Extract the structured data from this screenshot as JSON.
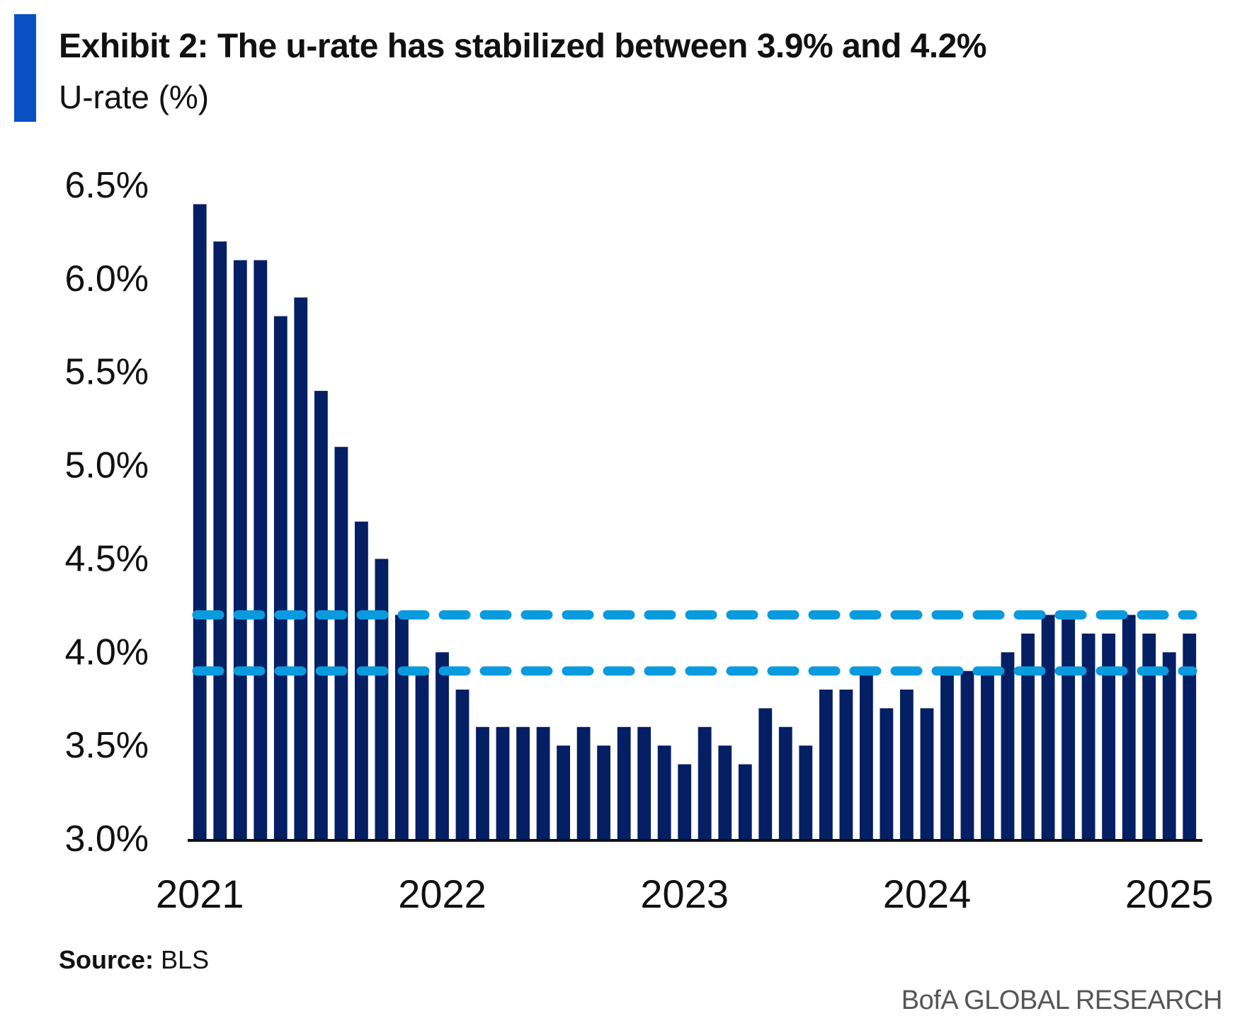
{
  "header": {
    "title": "Exhibit 2: The u-rate has stabilized between 3.9% and 4.2%",
    "subtitle": "U-rate (%)"
  },
  "footer": {
    "source_label": "Source:",
    "source_value": "BLS",
    "brand": "BofA GLOBAL RESEARCH"
  },
  "colors": {
    "bar": "#041f63",
    "reference_line": "#0a9ade",
    "accent": "#0b4fc4"
  },
  "chart_data": {
    "type": "bar",
    "title": "Exhibit 2: The u-rate has stabilized between 3.9% and 4.2%",
    "ylabel": "U-rate (%)",
    "ylim": [
      3.0,
      6.5
    ],
    "yticks": [
      3.0,
      3.5,
      4.0,
      4.5,
      5.0,
      5.5,
      6.0,
      6.5
    ],
    "ytick_labels": [
      "3.0%",
      "3.5%",
      "4.0%",
      "4.5%",
      "5.0%",
      "5.5%",
      "6.0%",
      "6.5%"
    ],
    "xtick_labels": [
      "2021",
      "2022",
      "2023",
      "2024",
      "2025"
    ],
    "categories": [
      "2021-01",
      "2021-02",
      "2021-03",
      "2021-04",
      "2021-05",
      "2021-06",
      "2021-07",
      "2021-08",
      "2021-09",
      "2021-10",
      "2021-11",
      "2021-12",
      "2022-01",
      "2022-02",
      "2022-03",
      "2022-04",
      "2022-05",
      "2022-06",
      "2022-07",
      "2022-08",
      "2022-09",
      "2022-10",
      "2022-11",
      "2022-12",
      "2023-01",
      "2023-02",
      "2023-03",
      "2023-04",
      "2023-05",
      "2023-06",
      "2023-07",
      "2023-08",
      "2023-09",
      "2023-10",
      "2023-11",
      "2023-12",
      "2024-01",
      "2024-02",
      "2024-03",
      "2024-04",
      "2024-05",
      "2024-06",
      "2024-07",
      "2024-08",
      "2024-09",
      "2024-10",
      "2024-11",
      "2024-12",
      "2025-01",
      "2025-02"
    ],
    "values": [
      6.4,
      6.2,
      6.1,
      6.1,
      5.8,
      5.9,
      5.4,
      5.1,
      4.7,
      4.5,
      4.2,
      3.9,
      4.0,
      3.8,
      3.6,
      3.6,
      3.6,
      3.6,
      3.5,
      3.6,
      3.5,
      3.6,
      3.6,
      3.5,
      3.4,
      3.6,
      3.5,
      3.4,
      3.7,
      3.6,
      3.5,
      3.8,
      3.8,
      3.9,
      3.7,
      3.8,
      3.7,
      3.9,
      3.9,
      3.9,
      4.0,
      4.1,
      4.2,
      4.2,
      4.1,
      4.1,
      4.2,
      4.1,
      4.0,
      4.1
    ],
    "reference_lines": [
      {
        "value": 4.2,
        "style": "dashed"
      },
      {
        "value": 3.9,
        "style": "dashed"
      }
    ],
    "grid": false,
    "legend": "none"
  }
}
